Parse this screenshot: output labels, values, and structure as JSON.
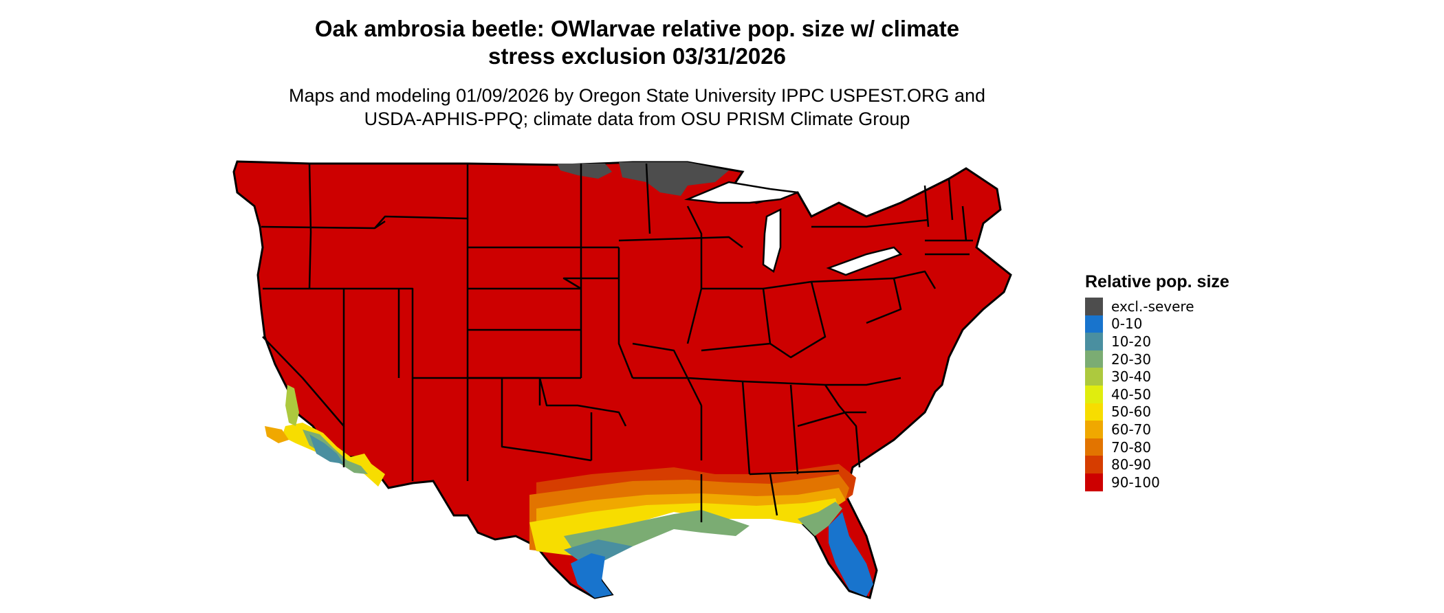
{
  "header": {
    "title_line1": "Oak ambrosia beetle: OWlarvae relative pop. size w/ climate",
    "title_line2": "stress exclusion 03/31/2026",
    "subtitle_line1": "Maps and modeling 01/09/2026 by Oregon State University IPPC USPEST.ORG and",
    "subtitle_line2": "USDA-APHIS-PPQ; climate data from OSU PRISM Climate Group"
  },
  "legend": {
    "title": "Relative pop. size",
    "items": [
      {
        "label": "excl.-severe",
        "color": "#4d4d4d"
      },
      {
        "label": "0-10",
        "color": "#1874cd"
      },
      {
        "label": "10-20",
        "color": "#4a8fa0"
      },
      {
        "label": "20-30",
        "color": "#7bac73"
      },
      {
        "label": "30-40",
        "color": "#adc93e"
      },
      {
        "label": "40-50",
        "color": "#e0ed0e"
      },
      {
        "label": "50-60",
        "color": "#f7dd00"
      },
      {
        "label": "60-70",
        "color": "#f0a800"
      },
      {
        "label": "70-80",
        "color": "#e27400"
      },
      {
        "label": "80-90",
        "color": "#d63d00"
      },
      {
        "label": "90-100",
        "color": "#cd0000"
      }
    ]
  },
  "map": {
    "base_color": "#cd0000",
    "border_color": "#000000"
  }
}
